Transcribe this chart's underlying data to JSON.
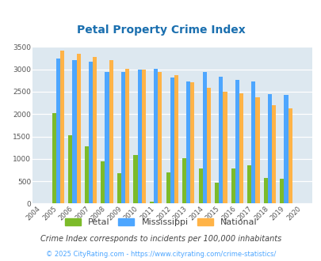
{
  "title": "Petal Property Crime Index",
  "title_color": "#1a6faf",
  "years": [
    "2004",
    "2005",
    "2006",
    "2007",
    "2008",
    "2009",
    "2010",
    "2011",
    "2012",
    "2013",
    "2014",
    "2015",
    "2016",
    "2017",
    "2018",
    "2019",
    "2020"
  ],
  "petal": [
    0,
    2020,
    1530,
    1280,
    940,
    670,
    1090,
    50,
    700,
    1010,
    780,
    470,
    780,
    850,
    570,
    560,
    0
  ],
  "mississippi": [
    0,
    3240,
    3200,
    3180,
    2950,
    2940,
    2990,
    3020,
    2820,
    2730,
    2940,
    2840,
    2770,
    2730,
    2440,
    2420,
    0
  ],
  "national": [
    0,
    3420,
    3340,
    3270,
    3200,
    3020,
    3000,
    2950,
    2870,
    2720,
    2590,
    2500,
    2460,
    2380,
    2200,
    2130,
    0
  ],
  "petal_color": "#7cbb2a",
  "mississippi_color": "#4da6ff",
  "national_color": "#ffb347",
  "ylim": [
    0,
    3500
  ],
  "yticks": [
    0,
    500,
    1000,
    1500,
    2000,
    2500,
    3000,
    3500
  ],
  "bg_color": "#dde8f0",
  "subtitle": "Crime Index corresponds to incidents per 100,000 inhabitants",
  "subtitle_color": "#444444",
  "footer": "© 2025 CityRating.com - https://www.cityrating.com/crime-statistics/",
  "footer_color": "#4da6ff",
  "legend_labels": [
    "Petal",
    "Mississippi",
    "National"
  ],
  "bar_width": 0.25
}
